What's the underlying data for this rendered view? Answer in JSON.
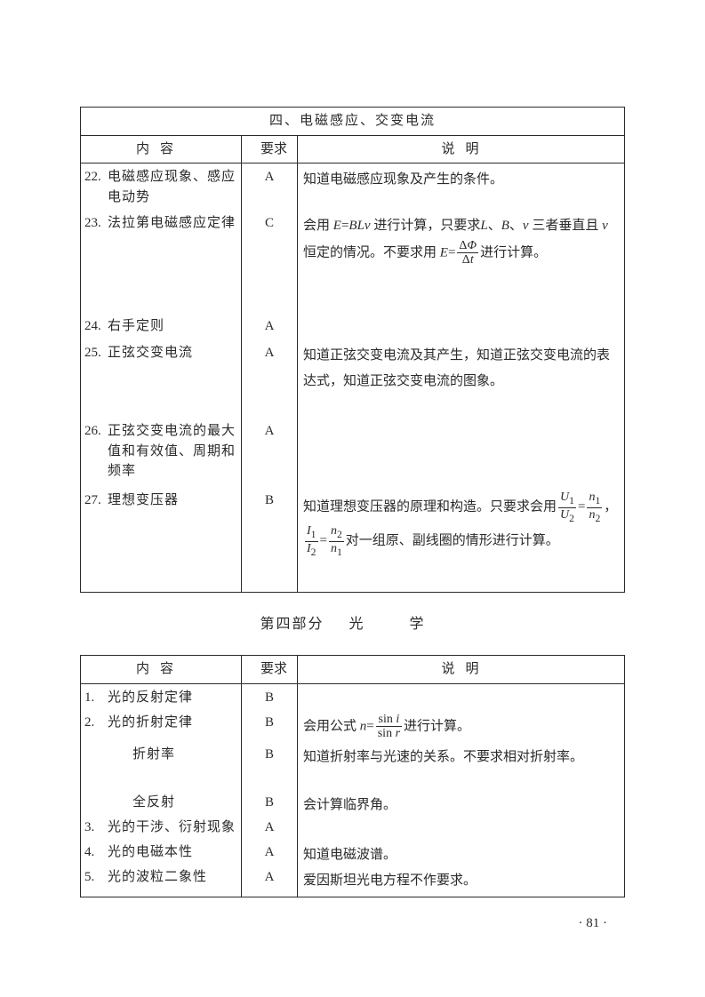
{
  "table1": {
    "title": "四、电磁感应、交变电流",
    "headers": {
      "content": "内容",
      "req": "要求",
      "desc": "说明"
    },
    "rows": [
      {
        "num": "22.",
        "content": "电磁感应现象、感应电动势",
        "req": "A",
        "desc_plain": "知道电磁感应现象及产生的条件。"
      },
      {
        "num": "23.",
        "content": "法拉第电磁感应定律",
        "req": "C",
        "desc_html": "会用 <span class='ital'>E</span>=<span class='ital'>BLv</span> 进行计算，只要求<span class='ital'>L</span>、<span class='ital'>B</span>、<span class='ital'>v</span> 三者垂直且 <span class='ital'>v</span> 恒定的情况。不要求用 <span class='ital'>E</span>=<span class='frac'><span class='top'>Δ<span class='ital'>Φ</span></span><span class='bot'>Δ<span class='ital'>t</span></span></span>进行计算。"
      },
      {
        "num": "24.",
        "content": "右手定则",
        "req": "A",
        "desc_plain": ""
      },
      {
        "num": "25.",
        "content": "正弦交变电流",
        "req": "A",
        "desc_plain": "知道正弦交变电流及其产生，知道正弦交变电流的表达式，知道正弦交变电流的图象。"
      },
      {
        "num": "26.",
        "content": "正弦交变电流的最大值和有效值、周期和频率",
        "req": "A",
        "desc_plain": ""
      },
      {
        "num": "27.",
        "content": "理想变压器",
        "req": "B",
        "desc_html": "知道理想变压器的原理和构造。只要求会用<span class='frac'><span class='top'><span class='ital'>U</span><sub>1</sub></span><span class='bot'><span class='ital'>U</span><sub>2</sub></span></span>=<span class='frac'><span class='top'><span class='ital'>n</span><sub>1</sub></span><span class='bot'><span class='ital'>n</span><sub>2</sub></span></span>，<span class='frac'><span class='top'><span class='ital'>I</span><sub>1</sub></span><span class='bot'><span class='ital'>I</span><sub>2</sub></span></span>=<span class='frac'><span class='top'><span class='ital'>n</span><sub>2</sub></span><span class='bot'><span class='ital'>n</span><sub>1</sub></span></span>对一组原、副线圈的情形进行计算。"
      }
    ]
  },
  "section_heading": {
    "part": "第四部分",
    "sub1": "光",
    "sub2": "学"
  },
  "table2": {
    "headers": {
      "content": "内容",
      "req": "要求",
      "desc": "说明"
    },
    "rows": [
      {
        "num": "1.",
        "content": "光的反射定律",
        "req": "B",
        "desc_plain": ""
      },
      {
        "num": "2.",
        "content": "光的折射定律",
        "req": "B",
        "desc_html": "会用公式 <span class='ital'>n</span>=<span class='frac'><span class='top'>sin <span class='ital'>i</span></span><span class='bot'>sin <span class='ital'>r</span></span></span>进行计算。"
      },
      {
        "num": "",
        "content": "折射率",
        "sub": true,
        "req": "B",
        "desc_plain": "知道折射率与光速的关系。不要求相对折射率。"
      },
      {
        "num": "",
        "content": "全反射",
        "sub": true,
        "req": "B",
        "desc_plain": "会计算临界角。"
      },
      {
        "num": "3.",
        "content": "光的干涉、衍射现象",
        "req": "A",
        "desc_plain": ""
      },
      {
        "num": "4.",
        "content": "光的电磁本性",
        "req": "A",
        "desc_plain": "知道电磁波谱。"
      },
      {
        "num": "5.",
        "content": "光的波粒二象性",
        "req": "A",
        "desc_plain": "爱因斯坦光电方程不作要求。"
      }
    ]
  },
  "page_number": "· 81 ·"
}
